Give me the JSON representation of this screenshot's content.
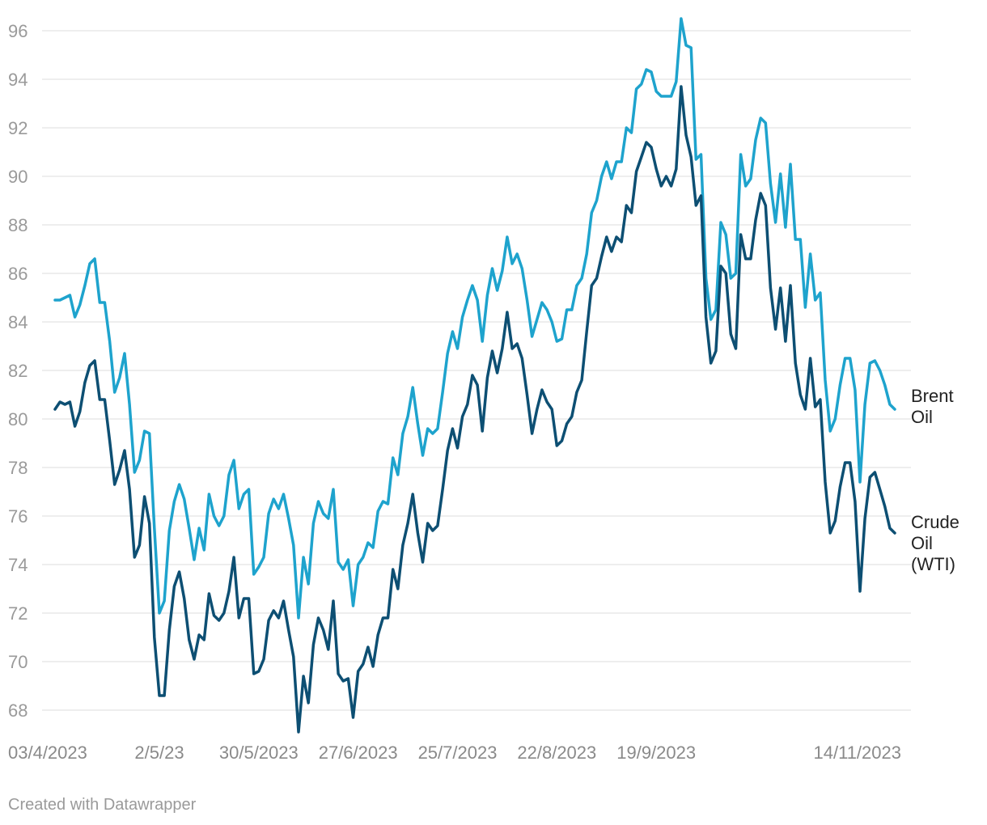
{
  "footer": {
    "credit": "Created with Datawrapper"
  },
  "chart_data": {
    "type": "line",
    "title": "",
    "xlabel": "",
    "ylabel": "",
    "ylim": [
      67,
      97
    ],
    "grid": true,
    "legend": "inline-right",
    "y_ticks": [
      68,
      70,
      72,
      74,
      76,
      78,
      80,
      82,
      84,
      86,
      88,
      90,
      92,
      94,
      96
    ],
    "x_tick_labels": [
      {
        "label": "03/4/2023",
        "index": 0
      },
      {
        "label": "2/5/23",
        "index": 21
      },
      {
        "label": "30/5/2023",
        "index": 41
      },
      {
        "label": "27/6/2023",
        "index": 61
      },
      {
        "label": "25/7/2023",
        "index": 81
      },
      {
        "label": "22/8/2023",
        "index": 101
      },
      {
        "label": "19/9/2023",
        "index": 121
      },
      {
        "label": "14/11/2023",
        "index": 161
      }
    ],
    "series": [
      {
        "name": "Brent Oil",
        "label_lines": [
          "Brent",
          "Oil"
        ],
        "color": "#1ea3cd",
        "values": [
          84.9,
          84.9,
          85.0,
          85.1,
          84.2,
          84.7,
          85.5,
          86.4,
          86.6,
          84.8,
          84.8,
          83.2,
          81.1,
          81.7,
          82.7,
          80.6,
          77.8,
          78.3,
          79.5,
          79.4,
          75.5,
          72.0,
          72.5,
          75.4,
          76.6,
          77.3,
          76.7,
          75.5,
          74.2,
          75.5,
          74.6,
          76.9,
          76.0,
          75.6,
          76.0,
          77.7,
          78.3,
          76.3,
          76.9,
          77.1,
          73.6,
          73.9,
          74.3,
          76.1,
          76.7,
          76.3,
          76.9,
          75.9,
          74.8,
          71.8,
          74.3,
          73.2,
          75.7,
          76.6,
          76.1,
          75.9,
          77.1,
          74.1,
          73.8,
          74.2,
          72.3,
          74.0,
          74.3,
          74.9,
          74.7,
          76.2,
          76.6,
          76.5,
          78.4,
          77.7,
          79.4,
          80.1,
          81.3,
          79.8,
          78.5,
          79.6,
          79.4,
          79.6,
          81.1,
          82.7,
          83.6,
          82.9,
          84.2,
          84.9,
          85.5,
          84.9,
          83.2,
          85.1,
          86.2,
          85.3,
          86.1,
          87.5,
          86.4,
          86.8,
          86.2,
          84.9,
          83.4,
          84.1,
          84.8,
          84.5,
          84.0,
          83.2,
          83.3,
          84.5,
          84.5,
          85.5,
          85.8,
          86.8,
          88.5,
          89.0,
          90.0,
          90.6,
          89.9,
          90.6,
          90.6,
          92.0,
          91.8,
          93.6,
          93.8,
          94.4,
          94.3,
          93.5,
          93.3,
          93.3,
          93.3,
          93.9,
          96.5,
          95.4,
          95.3,
          90.7,
          90.9,
          85.8,
          84.1,
          84.5,
          88.1,
          87.6,
          85.8,
          86.0,
          90.9,
          89.6,
          89.9,
          91.5,
          92.4,
          92.2,
          89.7,
          88.1,
          90.1,
          87.9,
          90.5,
          87.4,
          87.4,
          84.6,
          86.8,
          84.9,
          85.2,
          81.6,
          79.5,
          80.0,
          81.4,
          82.5,
          82.5,
          81.2,
          77.4,
          80.6,
          82.3,
          82.4,
          82.0,
          81.4,
          80.6,
          80.4
        ],
        "end_label": "Brent Oil"
      },
      {
        "name": "Crude Oil (WTI)",
        "label_lines": [
          "Crude",
          "Oil",
          "(WTI)"
        ],
        "color": "#0d4f73",
        "values": [
          80.4,
          80.7,
          80.6,
          80.7,
          79.7,
          80.3,
          81.5,
          82.2,
          82.4,
          80.8,
          80.8,
          79.1,
          77.3,
          77.9,
          78.7,
          77.1,
          74.3,
          74.8,
          76.8,
          75.7,
          71.0,
          68.6,
          68.6,
          71.3,
          73.1,
          73.7,
          72.6,
          70.9,
          70.1,
          71.1,
          70.9,
          72.8,
          71.9,
          71.7,
          72.0,
          72.9,
          74.3,
          71.8,
          72.6,
          72.6,
          69.5,
          69.6,
          70.1,
          71.7,
          72.1,
          71.8,
          72.5,
          71.3,
          70.2,
          67.1,
          69.4,
          68.3,
          70.7,
          71.8,
          71.3,
          70.5,
          72.5,
          69.5,
          69.2,
          69.3,
          67.7,
          69.6,
          69.9,
          70.6,
          69.8,
          71.1,
          71.8,
          71.8,
          73.8,
          73.0,
          74.8,
          75.7,
          76.9,
          75.3,
          74.1,
          75.7,
          75.4,
          75.6,
          77.1,
          78.7,
          79.6,
          78.8,
          80.1,
          80.6,
          81.8,
          81.4,
          79.5,
          81.7,
          82.8,
          81.9,
          82.9,
          84.4,
          82.9,
          83.1,
          82.5,
          81.0,
          79.4,
          80.4,
          81.2,
          80.7,
          80.4,
          78.9,
          79.1,
          79.8,
          80.1,
          81.1,
          81.6,
          83.6,
          85.5,
          85.8,
          86.7,
          87.5,
          86.9,
          87.5,
          87.3,
          88.8,
          88.5,
          90.2,
          90.8,
          91.4,
          91.2,
          90.3,
          89.6,
          90.0,
          89.6,
          90.3,
          93.7,
          91.7,
          90.8,
          88.8,
          89.2,
          84.2,
          82.3,
          82.8,
          86.3,
          86.0,
          83.5,
          82.9,
          87.6,
          86.6,
          86.6,
          88.2,
          89.3,
          88.8,
          85.4,
          83.7,
          85.4,
          83.2,
          85.5,
          82.3,
          81.0,
          80.4,
          82.5,
          80.5,
          80.8,
          77.4,
          75.3,
          75.8,
          77.2,
          78.2,
          78.2,
          76.6,
          72.9,
          75.9,
          77.6,
          77.8,
          77.1,
          76.4,
          75.5,
          75.3
        ],
        "end_label": "Crude Oil (WTI)"
      }
    ]
  }
}
